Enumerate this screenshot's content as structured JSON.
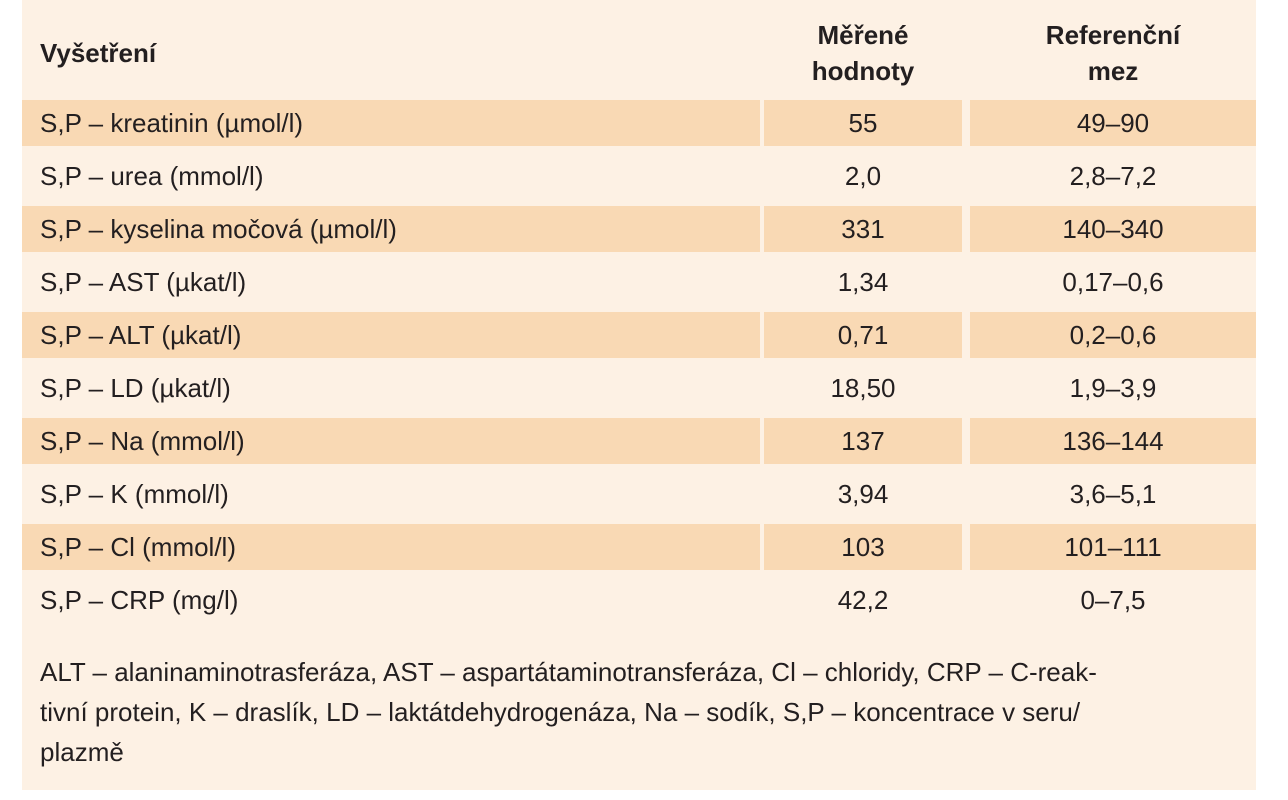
{
  "table": {
    "headers": {
      "name": "Vyšetření",
      "measured_line1": "Měřené",
      "measured_line2": "hodnoty",
      "reference_line1": "Referenční",
      "reference_line2": "mez"
    },
    "rows": [
      {
        "name": "S,P – kreatinin (µmol/l)",
        "measured": "55",
        "reference": "49–90"
      },
      {
        "name": "S,P – urea (mmol/l)",
        "measured": "2,0",
        "reference": "2,8–7,2"
      },
      {
        "name": "S,P – kyselina močová (µmol/l)",
        "measured": "331",
        "reference": "140–340"
      },
      {
        "name": "S,P – AST (µkat/l)",
        "measured": "1,34",
        "reference": "0,17–0,6"
      },
      {
        "name": "S,P – ALT (µkat/l)",
        "measured": "0,71",
        "reference": "0,2–0,6"
      },
      {
        "name": "S,P – LD (µkat/l)",
        "measured": "18,50",
        "reference": "1,9–3,9"
      },
      {
        "name": "S,P – Na (mmol/l)",
        "measured": "137",
        "reference": "136–144"
      },
      {
        "name": "S,P – K (mmol/l)",
        "measured": "3,94",
        "reference": "3,6–5,1"
      },
      {
        "name": "S,P – Cl (mmol/l)",
        "measured": "103",
        "reference": "101–111"
      },
      {
        "name": "S,P – CRP (mg/l)",
        "measured": "42,2",
        "reference": "0–7,5"
      }
    ]
  },
  "footnote": {
    "line1": "ALT – alaninaminotrasferáza, AST – aspartátaminotransferáza, Cl – chloridy, CRP – C-reak-",
    "line2": "tivní protein, K – draslík, LD – laktátdehydrogenáza, Na – sodík, S,P – koncentrace v seru/",
    "line3": "plazmě"
  },
  "colors": {
    "panel_background": "#fdf1e4",
    "shaded_row": "#f9d9b4",
    "text": "#231f20"
  }
}
